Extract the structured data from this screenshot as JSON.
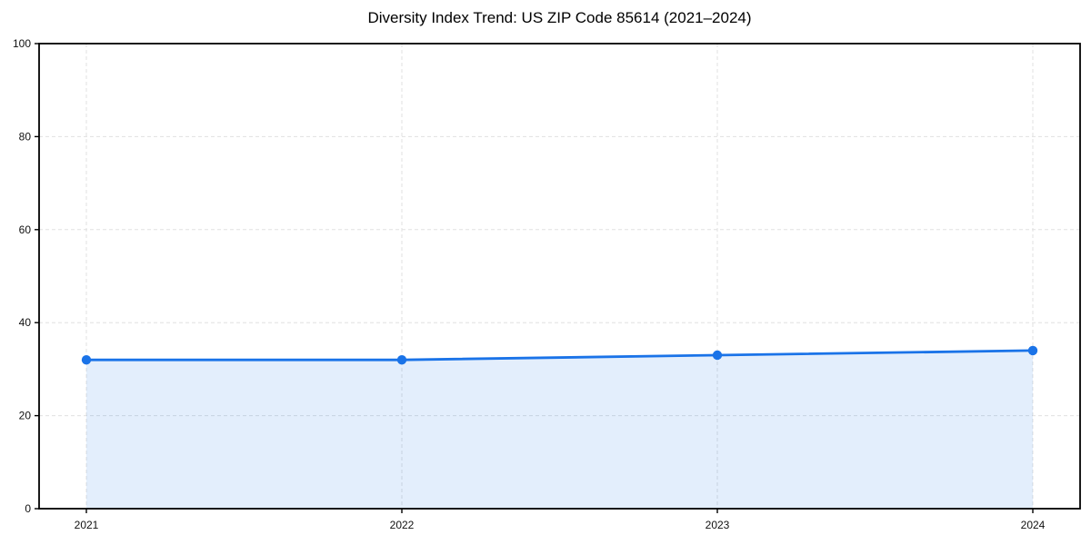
{
  "chart_data": {
    "type": "area",
    "title": "Diversity Index Trend: US ZIP Code 85614 (2021–2024)",
    "xlabel": "",
    "ylabel": "",
    "x": [
      2021,
      2022,
      2023,
      2024
    ],
    "series": [
      {
        "name": "Diversity Index",
        "values": [
          32,
          32,
          33,
          34
        ]
      }
    ],
    "xticks": [
      "2021",
      "2022",
      "2023",
      "2024"
    ],
    "yticks": [
      0,
      20,
      40,
      60,
      80,
      100
    ],
    "xlim": [
      2020.85,
      2024.15
    ],
    "ylim": [
      0,
      100
    ],
    "grid": true,
    "grid_style": "dashed",
    "legend": false,
    "colors": {
      "line": "#1a73e8",
      "marker": "#1a73e8",
      "fill": "#1a73e8",
      "fill_opacity": 0.12,
      "grid": "#e0e0e0",
      "spine": "#000000",
      "tick_text": "#111111",
      "background": "#ffffff"
    }
  }
}
